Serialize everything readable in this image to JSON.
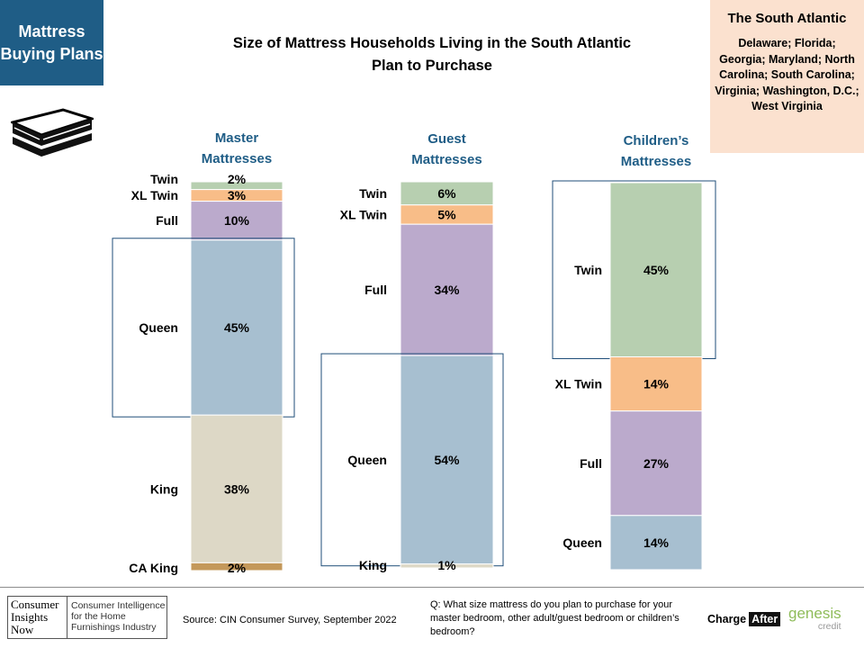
{
  "badge": {
    "title": "Mattress Buying Plans"
  },
  "region": {
    "title": "The South Atlantic",
    "states": "Delaware; Florida; Georgia; Maryland; North Carolina; South Carolina; Virginia; Washington, D.C.; West Virginia"
  },
  "chart_title": "Size of Mattress Households Living in the South Atlantic Plan to Purchase",
  "colors": {
    "Twin": "#b7cfb0",
    "XL Twin": "#f8bd88",
    "Full": "#bbaacc",
    "Queen": "#a7bfd0",
    "King": "#ddd8c6",
    "CA King": "#c4985a",
    "highlight": "#1f4e79"
  },
  "chart_data": {
    "type": "bar",
    "stacked": true,
    "title": "Size of Mattress Households Living in the South Atlantic Plan to Purchase",
    "columns": [
      {
        "name": "Master Mattresses",
        "segments": [
          {
            "label": "Twin",
            "value": 2,
            "value_label": "2%"
          },
          {
            "label": "XL Twin",
            "value": 3,
            "value_label": "3%"
          },
          {
            "label": "Full",
            "value": 10,
            "value_label": "10%"
          },
          {
            "label": "Queen",
            "value": 45,
            "value_label": "45%",
            "highlight": true
          },
          {
            "label": "King",
            "value": 38,
            "value_label": "38%"
          },
          {
            "label": "CA King",
            "value": 2,
            "value_label": "2%"
          }
        ]
      },
      {
        "name": "Guest Mattresses",
        "segments": [
          {
            "label": "Twin",
            "value": 6,
            "value_label": "6%"
          },
          {
            "label": "XL Twin",
            "value": 5,
            "value_label": "5%"
          },
          {
            "label": "Full",
            "value": 34,
            "value_label": "34%"
          },
          {
            "label": "Queen",
            "value": 54,
            "value_label": "54%",
            "highlight": true
          },
          {
            "label": "King",
            "value": 1,
            "value_label": "1%"
          }
        ]
      },
      {
        "name": "Children’s Mattresses",
        "segments": [
          {
            "label": "Twin",
            "value": 45,
            "value_label": "45%",
            "highlight": true
          },
          {
            "label": "XL Twin",
            "value": 14,
            "value_label": "14%"
          },
          {
            "label": "Full",
            "value": 27,
            "value_label": "27%"
          },
          {
            "label": "Queen",
            "value": 14,
            "value_label": "14%"
          }
        ]
      }
    ]
  },
  "footer": {
    "logo_left": [
      "Consumer",
      "Insights",
      "Now"
    ],
    "logo_right": "Consumer Intelligence for the Home Furnishings Industry",
    "source": "Source: CIN Consumer Survey, September  2022",
    "question": "Q: What size mattress do you plan to purchase for your master bedroom, other adult/guest bedroom or children’s bedroom?",
    "chargeafter_a": "Charge",
    "chargeafter_b": "After",
    "genesis": "genesis",
    "genesis_sub": "credit"
  },
  "icons": {
    "mattress": "mattress-icon"
  }
}
